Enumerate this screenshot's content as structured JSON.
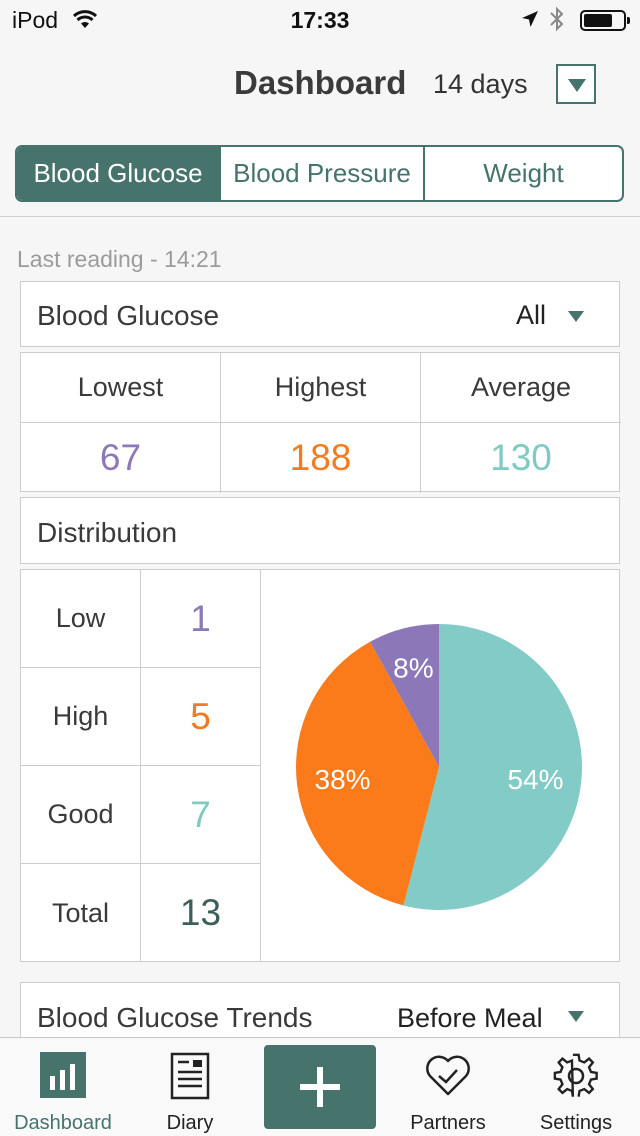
{
  "status_bar": {
    "carrier": "iPod",
    "time": "17:33"
  },
  "header": {
    "title": "Dashboard",
    "range": "14 days"
  },
  "segments": [
    {
      "label": "Blood Glucose",
      "active": true
    },
    {
      "label": "Blood Pressure",
      "active": false
    },
    {
      "label": "Weight",
      "active": false
    }
  ],
  "last_reading": "Last reading - 14:21",
  "summary": {
    "title": "Blood Glucose",
    "filter": "All",
    "headers": [
      "Lowest",
      "Highest",
      "Average"
    ],
    "values": [
      "67",
      "188",
      "130"
    ]
  },
  "distribution": {
    "title": "Distribution",
    "rows": [
      {
        "label": "Low",
        "count": "1"
      },
      {
        "label": "High",
        "count": "5"
      },
      {
        "label": "Good",
        "count": "7"
      },
      {
        "label": "Total",
        "count": "13"
      }
    ]
  },
  "colors": {
    "accent": "#47736d",
    "low": "#8b79b8",
    "high": "#f47b20",
    "good": "#7ecbc3",
    "total": "#3d5f5a"
  },
  "chart_data": {
    "type": "pie",
    "slices": [
      {
        "label": "54%",
        "value": 54,
        "color": "#82cbc6"
      },
      {
        "label": "38%",
        "value": 38,
        "color": "#fb7a1a"
      },
      {
        "label": "8%",
        "value": 8,
        "color": "#8c78b8"
      }
    ]
  },
  "trends": {
    "title": "Blood Glucose Trends",
    "filter": "Before Meal"
  },
  "tabbar": {
    "items": [
      {
        "label": "Dashboard",
        "icon": "bar-chart-icon"
      },
      {
        "label": "Diary",
        "icon": "diary-icon"
      },
      {
        "label": "Partners",
        "icon": "heart-check-icon"
      },
      {
        "label": "Settings",
        "icon": "gear-icon"
      }
    ],
    "add_icon": "plus-icon"
  }
}
